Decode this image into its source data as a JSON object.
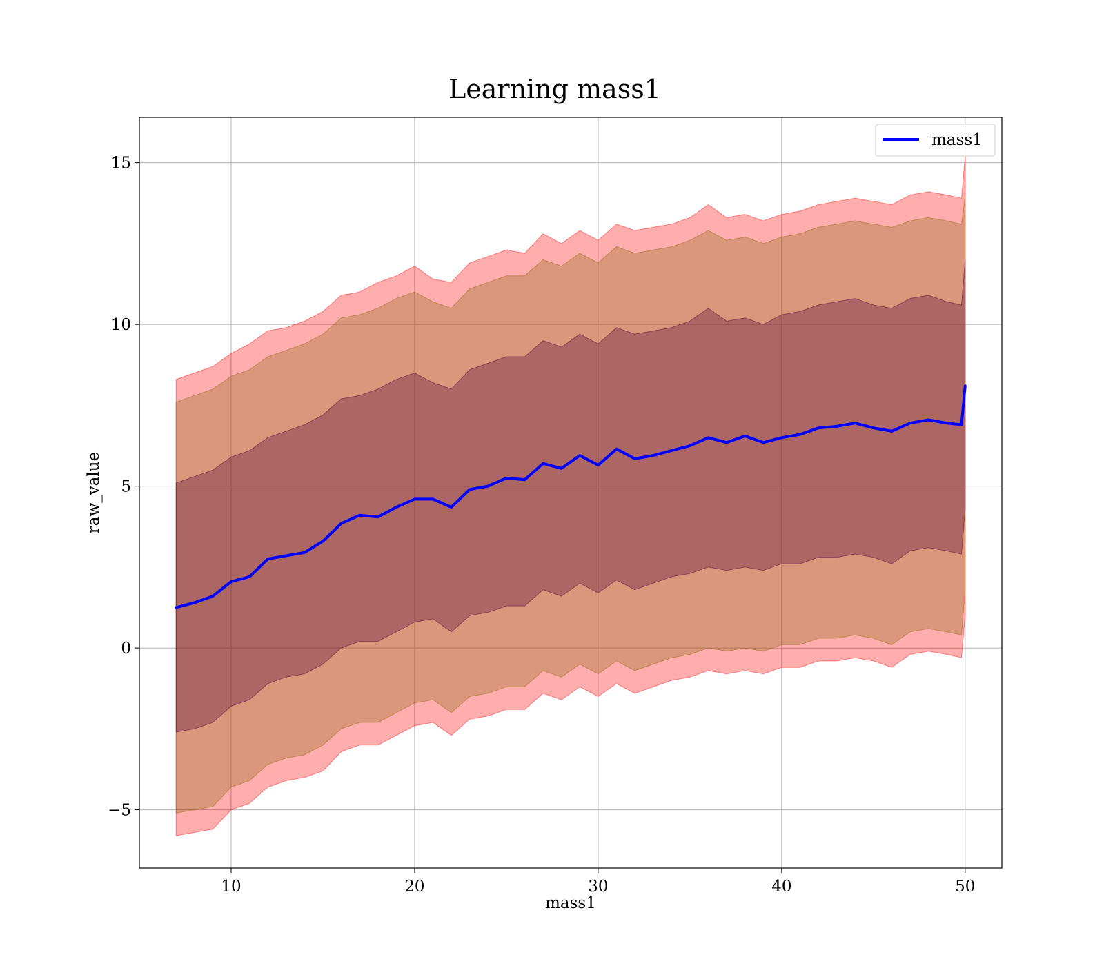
{
  "chart_data": {
    "type": "area",
    "title": "Learning mass1",
    "xlabel": "mass1",
    "ylabel": "raw_value",
    "xlim": [
      5,
      52
    ],
    "ylim": [
      -6.8,
      16.4
    ],
    "xticks": [
      10,
      20,
      30,
      40,
      50
    ],
    "yticks": [
      -5,
      0,
      5,
      10,
      15
    ],
    "xtick_labels": [
      "10",
      "20",
      "30",
      "40",
      "50"
    ],
    "ytick_labels": [
      "−5",
      "0",
      "5",
      "10",
      "15"
    ],
    "grid": true,
    "legend": {
      "position": "top-right",
      "entries": [
        "mass1"
      ]
    },
    "x": [
      7,
      8,
      9,
      10,
      11,
      12,
      13,
      14,
      15,
      16,
      17,
      18,
      19,
      20,
      21,
      22,
      23,
      24,
      25,
      26,
      27,
      28,
      29,
      30,
      31,
      32,
      33,
      34,
      35,
      36,
      37,
      38,
      39,
      40,
      41,
      42,
      43,
      44,
      45,
      46,
      47,
      48,
      49,
      49.8,
      50
    ],
    "series": [
      {
        "name": "mass1",
        "color": "#0000ff",
        "values": [
          1.25,
          1.4,
          1.6,
          2.05,
          2.2,
          2.75,
          2.85,
          2.95,
          3.3,
          3.85,
          4.1,
          4.05,
          4.35,
          4.6,
          4.6,
          4.35,
          4.9,
          5.0,
          5.25,
          5.2,
          5.7,
          5.55,
          5.95,
          5.65,
          6.15,
          5.85,
          5.95,
          6.1,
          6.25,
          6.5,
          6.35,
          6.55,
          6.35,
          6.5,
          6.6,
          6.8,
          6.85,
          6.95,
          6.8,
          6.7,
          6.95,
          7.05,
          6.95,
          6.9,
          8.1
        ]
      }
    ],
    "bands": [
      {
        "name": "outer",
        "color": "#ff0000",
        "upper": [
          8.3,
          8.5,
          8.7,
          9.1,
          9.4,
          9.8,
          9.9,
          10.1,
          10.4,
          10.9,
          11.0,
          11.3,
          11.5,
          11.8,
          11.4,
          11.3,
          11.9,
          12.1,
          12.3,
          12.2,
          12.8,
          12.5,
          12.9,
          12.6,
          13.1,
          12.9,
          13.0,
          13.1,
          13.3,
          13.7,
          13.3,
          13.4,
          13.2,
          13.4,
          13.5,
          13.7,
          13.8,
          13.9,
          13.8,
          13.7,
          14.0,
          14.1,
          14.0,
          13.9,
          15.2
        ],
        "lower": [
          -5.8,
          -5.7,
          -5.6,
          -5.0,
          -4.8,
          -4.3,
          -4.1,
          -4.0,
          -3.8,
          -3.2,
          -3.0,
          -3.0,
          -2.7,
          -2.4,
          -2.3,
          -2.7,
          -2.2,
          -2.1,
          -1.9,
          -1.9,
          -1.4,
          -1.6,
          -1.2,
          -1.5,
          -1.1,
          -1.4,
          -1.2,
          -1.0,
          -0.9,
          -0.7,
          -0.8,
          -0.7,
          -0.8,
          -0.6,
          -0.6,
          -0.4,
          -0.4,
          -0.3,
          -0.4,
          -0.6,
          -0.2,
          -0.1,
          -0.2,
          -0.3,
          1.0
        ]
      },
      {
        "name": "middle",
        "color": "#8b6914",
        "upper": [
          7.6,
          7.8,
          8.0,
          8.4,
          8.6,
          9.0,
          9.2,
          9.4,
          9.7,
          10.2,
          10.3,
          10.5,
          10.8,
          11.0,
          10.7,
          10.5,
          11.1,
          11.3,
          11.5,
          11.5,
          12.0,
          11.8,
          12.2,
          11.9,
          12.4,
          12.2,
          12.3,
          12.4,
          12.6,
          12.9,
          12.6,
          12.7,
          12.5,
          12.7,
          12.8,
          13.0,
          13.1,
          13.2,
          13.1,
          13.0,
          13.2,
          13.3,
          13.2,
          13.1,
          14.0
        ],
        "lower": [
          -5.1,
          -5.0,
          -4.9,
          -4.3,
          -4.1,
          -3.6,
          -3.4,
          -3.3,
          -3.0,
          -2.5,
          -2.3,
          -2.3,
          -2.0,
          -1.7,
          -1.6,
          -2.0,
          -1.5,
          -1.4,
          -1.2,
          -1.2,
          -0.7,
          -0.9,
          -0.5,
          -0.8,
          -0.4,
          -0.7,
          -0.5,
          -0.3,
          -0.2,
          0.0,
          -0.1,
          0.0,
          -0.1,
          0.1,
          0.1,
          0.3,
          0.3,
          0.4,
          0.3,
          0.1,
          0.5,
          0.6,
          0.5,
          0.4,
          1.8
        ]
      },
      {
        "name": "inner",
        "color": "#4b0036",
        "upper": [
          5.1,
          5.3,
          5.5,
          5.9,
          6.1,
          6.5,
          6.7,
          6.9,
          7.2,
          7.7,
          7.8,
          8.0,
          8.3,
          8.5,
          8.2,
          8.0,
          8.6,
          8.8,
          9.0,
          9.0,
          9.5,
          9.3,
          9.7,
          9.4,
          9.9,
          9.7,
          9.8,
          9.9,
          10.1,
          10.5,
          10.1,
          10.2,
          10.0,
          10.3,
          10.4,
          10.6,
          10.7,
          10.8,
          10.6,
          10.5,
          10.8,
          10.9,
          10.7,
          10.6,
          12.0
        ],
        "lower": [
          -2.6,
          -2.5,
          -2.3,
          -1.8,
          -1.6,
          -1.1,
          -0.9,
          -0.8,
          -0.5,
          0.0,
          0.2,
          0.2,
          0.5,
          0.8,
          0.9,
          0.5,
          1.0,
          1.1,
          1.3,
          1.3,
          1.8,
          1.6,
          2.0,
          1.7,
          2.1,
          1.8,
          2.0,
          2.2,
          2.3,
          2.5,
          2.4,
          2.5,
          2.4,
          2.6,
          2.6,
          2.8,
          2.8,
          2.9,
          2.8,
          2.6,
          3.0,
          3.1,
          3.0,
          2.9,
          4.3
        ]
      }
    ]
  }
}
